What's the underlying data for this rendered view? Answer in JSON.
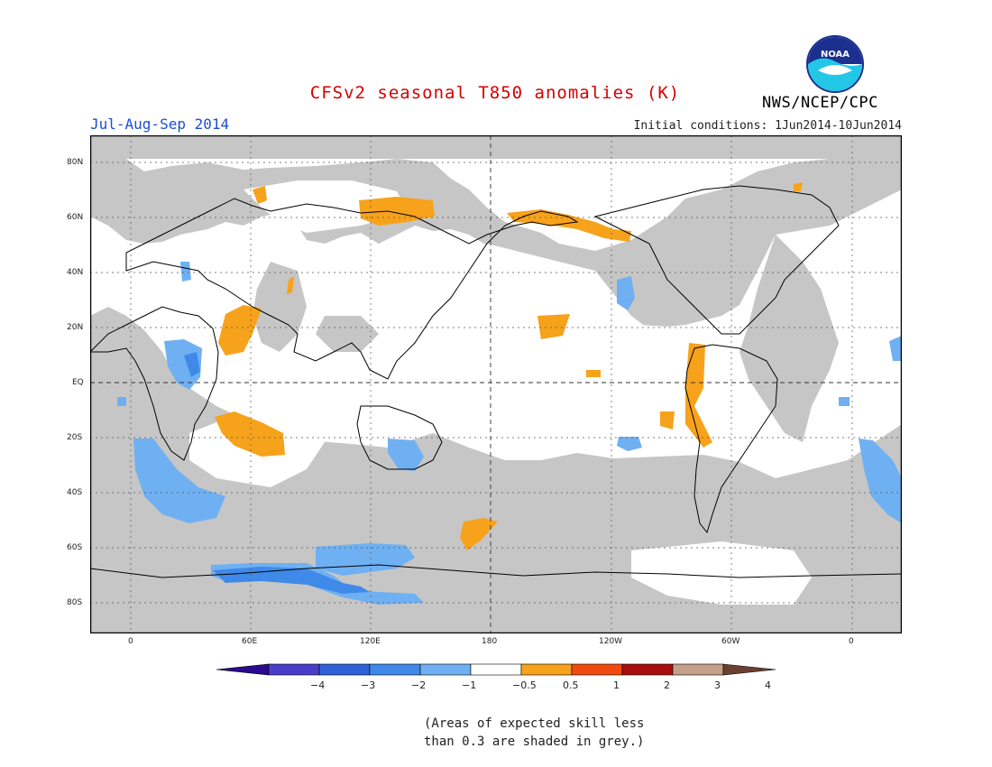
{
  "header": {
    "title": "CFSv2 seasonal T850 anomalies (K)",
    "period": "Jul-Aug-Sep 2014",
    "initial_conditions": "Initial conditions: 1Jun2014-10Jun2014",
    "agency": "NWS/NCEP/CPC",
    "logo_text": "NOAA"
  },
  "map": {
    "lat_labels": [
      "80N",
      "60N",
      "40N",
      "20N",
      "EQ",
      "20S",
      "40S",
      "60S",
      "80S"
    ],
    "lon_labels": [
      "0",
      "60E",
      "120E",
      "180",
      "120W",
      "60W",
      "0"
    ],
    "colors": {
      "grey_low_skill": "#c6c6c6",
      "positive_05_1": "#f7a21b",
      "negative_1_05": "#6fb0f2",
      "negative_2_1": "#3f8ae8",
      "coast": "#000000"
    }
  },
  "colorbar": {
    "labels": [
      "−4",
      "−3",
      "−2",
      "−1",
      "−0.5",
      "0.5",
      "1",
      "2",
      "3",
      "4"
    ],
    "colors": [
      "#2a0a8f",
      "#4a3ec8",
      "#2f62d8",
      "#3f8ae8",
      "#6fb0f2",
      "#ffffff",
      "#f7a21b",
      "#f04a10",
      "#a80e0e",
      "#c4a08a",
      "#6b4030"
    ]
  },
  "footnote": {
    "line1": "(Areas of expected skill less",
    "line2": "than 0.3 are shaded in grey.)"
  }
}
